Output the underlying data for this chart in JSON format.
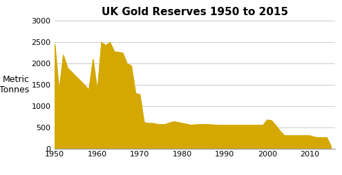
{
  "title": "UK Gold Reserves 1950 to 2015",
  "ylabel_line1": "Metric",
  "ylabel_line2": "Tonnes",
  "fill_color": "#D4A800",
  "background_color": "#ffffff",
  "xlim": [
    1950,
    2016
  ],
  "ylim": [
    0,
    3000
  ],
  "yticks": [
    0,
    500,
    1000,
    1500,
    2000,
    2500,
    3000
  ],
  "xticks": [
    1950,
    1960,
    1970,
    1980,
    1990,
    2000,
    2010
  ],
  "years": [
    1950,
    1951,
    1952,
    1953,
    1954,
    1955,
    1956,
    1957,
    1958,
    1959,
    1960,
    1961,
    1962,
    1963,
    1964,
    1965,
    1966,
    1967,
    1968,
    1969,
    1970,
    1971,
    1972,
    1973,
    1974,
    1975,
    1976,
    1977,
    1978,
    1979,
    1980,
    1981,
    1982,
    1983,
    1984,
    1985,
    1986,
    1987,
    1988,
    1989,
    1990,
    1991,
    1992,
    1993,
    1994,
    1995,
    1996,
    1997,
    1998,
    1999,
    2000,
    2001,
    2002,
    2003,
    2004,
    2005,
    2006,
    2007,
    2008,
    2009,
    2010,
    2011,
    2012,
    2013,
    2014,
    2015
  ],
  "values": [
    2450,
    1350,
    2200,
    1900,
    1800,
    1700,
    1600,
    1500,
    1380,
    2100,
    1350,
    2500,
    2430,
    2500,
    2280,
    2270,
    2250,
    2000,
    1950,
    1300,
    1280,
    620,
    600,
    600,
    580,
    570,
    575,
    610,
    640,
    620,
    600,
    580,
    560,
    565,
    570,
    575,
    570,
    565,
    560,
    555,
    555,
    555,
    555,
    555,
    555,
    555,
    555,
    555,
    555,
    555,
    680,
    665,
    550,
    420,
    315,
    310,
    310,
    310,
    310,
    310,
    310,
    280,
    265,
    265,
    265,
    60
  ]
}
